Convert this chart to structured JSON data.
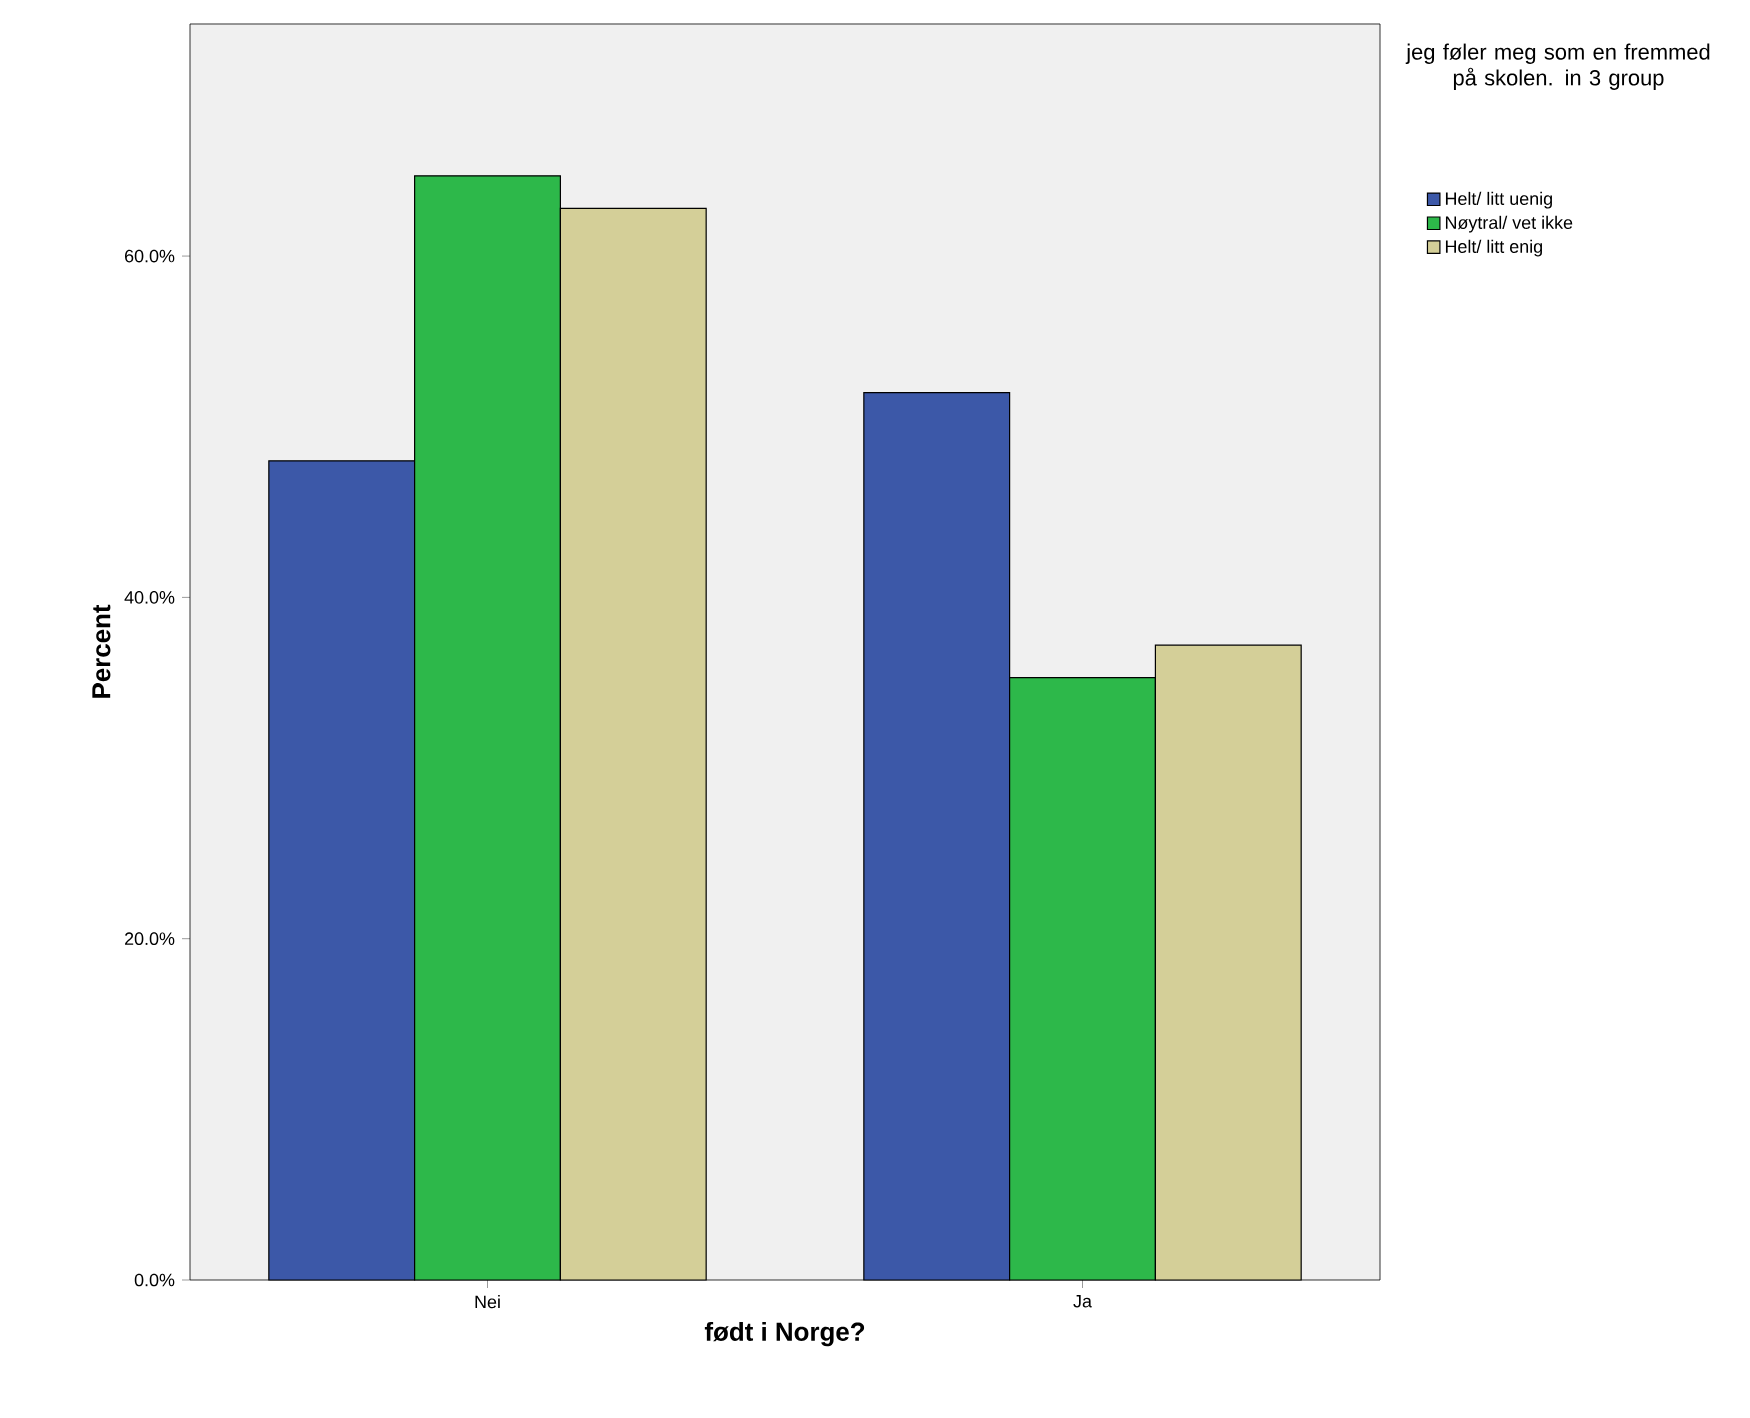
{
  "chart_data": {
    "type": "bar",
    "xlabel": "født i Norge?",
    "ylabel": "Percent",
    "legend_title": "jeg føler meg som en fremmed på skolen. in 3 group",
    "legend": "right",
    "categories": [
      "Nei",
      "Ja"
    ],
    "series": [
      {
        "name": "Helt/ litt uenig",
        "color": "#3c58a8",
        "values": [
          48.0,
          52.0
        ]
      },
      {
        "name": "Nøytral/ vet ikke",
        "color": "#2db84a",
        "values": [
          64.7,
          35.3
        ]
      },
      {
        "name": "Helt/ litt enig",
        "color": "#d4cf98",
        "values": [
          62.8,
          37.2
        ]
      }
    ],
    "ylim": [
      0,
      73.6
    ],
    "yticks": [
      {
        "value": 0,
        "label": "0.0%"
      },
      {
        "value": 20,
        "label": "20.0%"
      },
      {
        "value": 40,
        "label": "40.0%"
      },
      {
        "value": 60,
        "label": "60.0%"
      }
    ]
  }
}
